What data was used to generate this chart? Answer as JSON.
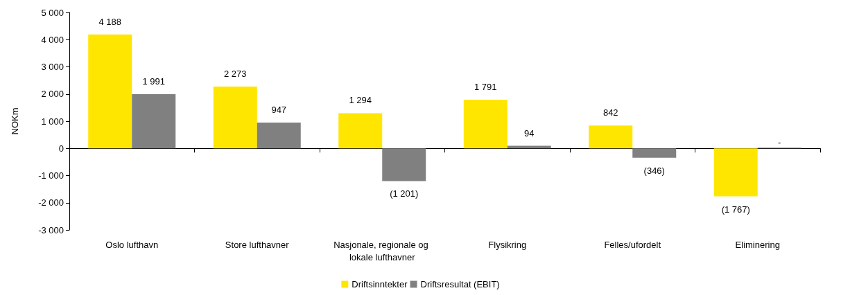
{
  "chart_data": {
    "type": "bar",
    "ylabel": "NOKm",
    "categories": [
      "Oslo lufthavn",
      "Store lufthavner",
      "Nasjonale, regionale og lokale lufthavner",
      "Flysikring",
      "Felles/ufordelt",
      "Eliminering"
    ],
    "series": [
      {
        "name": "Driftsinntekter",
        "color": "#ffe600",
        "values": [
          4188,
          2273,
          1294,
          1791,
          842,
          -1767
        ],
        "value_labels": [
          "4 188",
          "2 273",
          "1 294",
          "1 791",
          "842",
          "(1 767)"
        ]
      },
      {
        "name": "Driftsresultat (EBIT)",
        "color": "#808080",
        "values": [
          1991,
          947,
          -1201,
          94,
          -346,
          0
        ],
        "value_labels": [
          "1 991",
          "947",
          "(1 201)",
          "94",
          "(346)",
          "-"
        ]
      }
    ],
    "ylim": [
      -3000,
      5000
    ],
    "yticks": [
      {
        "value": -3000,
        "label": "-3 000"
      },
      {
        "value": -2000,
        "label": "-2 000"
      },
      {
        "value": -1000,
        "label": "-1 000"
      },
      0,
      {
        "value": 1000,
        "label": "1 000"
      },
      {
        "value": 2000,
        "label": "2 000"
      },
      {
        "value": 3000,
        "label": "3 000"
      },
      {
        "value": 4000,
        "label": "4 000"
      },
      {
        "value": 5000,
        "label": "5 000"
      }
    ],
    "legend": "bottom"
  }
}
